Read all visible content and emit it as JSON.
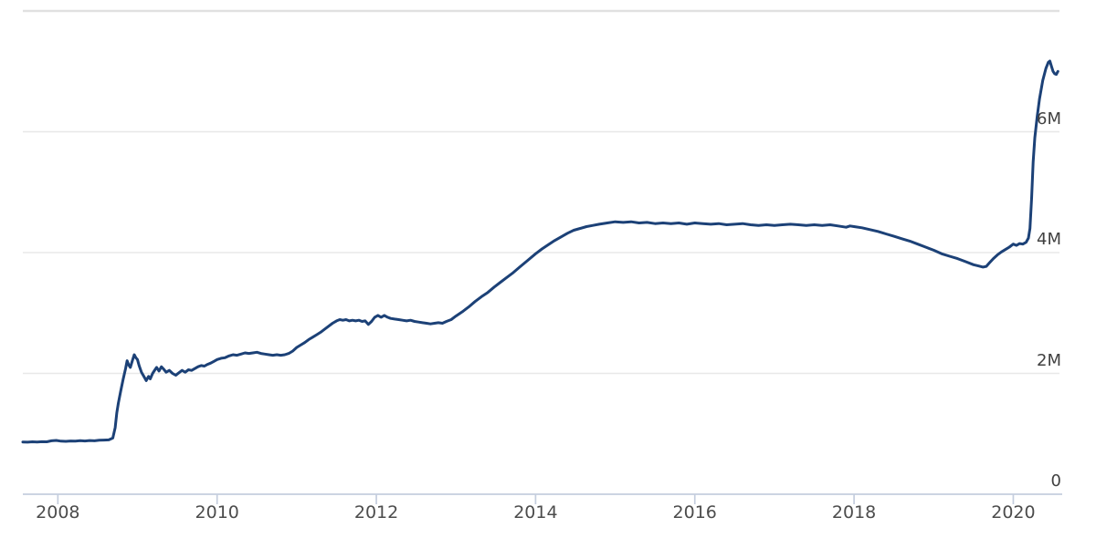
{
  "chart_data": {
    "type": "line",
    "title": "",
    "xlabel": "",
    "ylabel": "",
    "grid": true,
    "legend": false,
    "x_axis": {
      "range": [
        2007.56,
        2020.58
      ],
      "ticks": [
        "2008",
        "2010",
        "2012",
        "2014",
        "2016",
        "2018",
        "2020"
      ],
      "tick_values": [
        2008,
        2010,
        2012,
        2014,
        2016,
        2018,
        2020
      ]
    },
    "y_axis": {
      "range": [
        0,
        8
      ],
      "unit_suffix": "M",
      "ticks": [
        {
          "value": 0,
          "label": "0"
        },
        {
          "value": 2,
          "label": "2M"
        },
        {
          "value": 4,
          "label": "4M"
        },
        {
          "value": 6,
          "label": "6M"
        },
        {
          "value": 8,
          "label": ""
        }
      ]
    },
    "series": [
      {
        "name": "total-assets-line",
        "color": "#1c4177",
        "points": [
          [
            2007.56,
            0.865
          ],
          [
            2007.62,
            0.862
          ],
          [
            2007.68,
            0.868
          ],
          [
            2007.74,
            0.864
          ],
          [
            2007.8,
            0.87
          ],
          [
            2007.86,
            0.868
          ],
          [
            2007.92,
            0.885
          ],
          [
            2007.98,
            0.89
          ],
          [
            2008.04,
            0.878
          ],
          [
            2008.1,
            0.875
          ],
          [
            2008.16,
            0.882
          ],
          [
            2008.22,
            0.878
          ],
          [
            2008.28,
            0.886
          ],
          [
            2008.34,
            0.882
          ],
          [
            2008.4,
            0.889
          ],
          [
            2008.46,
            0.885
          ],
          [
            2008.52,
            0.893
          ],
          [
            2008.58,
            0.896
          ],
          [
            2008.64,
            0.9
          ],
          [
            2008.69,
            0.93
          ],
          [
            2008.72,
            1.1
          ],
          [
            2008.74,
            1.35
          ],
          [
            2008.76,
            1.51
          ],
          [
            2008.79,
            1.71
          ],
          [
            2008.82,
            1.9
          ],
          [
            2008.85,
            2.08
          ],
          [
            2008.87,
            2.21
          ],
          [
            2008.89,
            2.14
          ],
          [
            2008.91,
            2.1
          ],
          [
            2008.94,
            2.23
          ],
          [
            2008.96,
            2.31
          ],
          [
            2008.98,
            2.26
          ],
          [
            2009.0,
            2.23
          ],
          [
            2009.02,
            2.13
          ],
          [
            2009.05,
            2.02
          ],
          [
            2009.08,
            1.95
          ],
          [
            2009.11,
            1.88
          ],
          [
            2009.14,
            1.95
          ],
          [
            2009.16,
            1.91
          ],
          [
            2009.19,
            2.0
          ],
          [
            2009.22,
            2.06
          ],
          [
            2009.24,
            2.1
          ],
          [
            2009.27,
            2.04
          ],
          [
            2009.3,
            2.11
          ],
          [
            2009.33,
            2.07
          ],
          [
            2009.36,
            2.02
          ],
          [
            2009.4,
            2.05
          ],
          [
            2009.44,
            2.0
          ],
          [
            2009.48,
            1.97
          ],
          [
            2009.52,
            2.01
          ],
          [
            2009.56,
            2.05
          ],
          [
            2009.6,
            2.02
          ],
          [
            2009.64,
            2.06
          ],
          [
            2009.68,
            2.05
          ],
          [
            2009.72,
            2.08
          ],
          [
            2009.76,
            2.11
          ],
          [
            2009.8,
            2.13
          ],
          [
            2009.84,
            2.12
          ],
          [
            2009.88,
            2.15
          ],
          [
            2009.92,
            2.17
          ],
          [
            2009.96,
            2.2
          ],
          [
            2010.0,
            2.23
          ],
          [
            2010.05,
            2.25
          ],
          [
            2010.1,
            2.26
          ],
          [
            2010.15,
            2.29
          ],
          [
            2010.2,
            2.31
          ],
          [
            2010.25,
            2.3
          ],
          [
            2010.3,
            2.32
          ],
          [
            2010.35,
            2.34
          ],
          [
            2010.4,
            2.33
          ],
          [
            2010.45,
            2.34
          ],
          [
            2010.5,
            2.35
          ],
          [
            2010.55,
            2.33
          ],
          [
            2010.6,
            2.32
          ],
          [
            2010.65,
            2.31
          ],
          [
            2010.7,
            2.3
          ],
          [
            2010.75,
            2.31
          ],
          [
            2010.8,
            2.3
          ],
          [
            2010.85,
            2.31
          ],
          [
            2010.9,
            2.33
          ],
          [
            2010.95,
            2.37
          ],
          [
            2011.0,
            2.43
          ],
          [
            2011.05,
            2.47
          ],
          [
            2011.1,
            2.51
          ],
          [
            2011.15,
            2.56
          ],
          [
            2011.2,
            2.6
          ],
          [
            2011.25,
            2.64
          ],
          [
            2011.3,
            2.68
          ],
          [
            2011.35,
            2.73
          ],
          [
            2011.4,
            2.78
          ],
          [
            2011.45,
            2.83
          ],
          [
            2011.5,
            2.87
          ],
          [
            2011.54,
            2.89
          ],
          [
            2011.58,
            2.88
          ],
          [
            2011.62,
            2.89
          ],
          [
            2011.66,
            2.87
          ],
          [
            2011.7,
            2.88
          ],
          [
            2011.74,
            2.87
          ],
          [
            2011.78,
            2.88
          ],
          [
            2011.82,
            2.86
          ],
          [
            2011.86,
            2.87
          ],
          [
            2011.9,
            2.81
          ],
          [
            2011.94,
            2.86
          ],
          [
            2011.98,
            2.93
          ],
          [
            2012.02,
            2.96
          ],
          [
            2012.06,
            2.93
          ],
          [
            2012.1,
            2.96
          ],
          [
            2012.14,
            2.93
          ],
          [
            2012.18,
            2.91
          ],
          [
            2012.23,
            2.9
          ],
          [
            2012.28,
            2.89
          ],
          [
            2012.33,
            2.88
          ],
          [
            2012.38,
            2.87
          ],
          [
            2012.43,
            2.88
          ],
          [
            2012.48,
            2.86
          ],
          [
            2012.53,
            2.85
          ],
          [
            2012.58,
            2.84
          ],
          [
            2012.63,
            2.83
          ],
          [
            2012.68,
            2.82
          ],
          [
            2012.73,
            2.83
          ],
          [
            2012.78,
            2.84
          ],
          [
            2012.83,
            2.83
          ],
          [
            2012.88,
            2.86
          ],
          [
            2012.94,
            2.89
          ],
          [
            2013.0,
            2.95
          ],
          [
            2013.08,
            3.02
          ],
          [
            2013.16,
            3.1
          ],
          [
            2013.24,
            3.19
          ],
          [
            2013.32,
            3.27
          ],
          [
            2013.4,
            3.34
          ],
          [
            2013.48,
            3.43
          ],
          [
            2013.56,
            3.51
          ],
          [
            2013.64,
            3.59
          ],
          [
            2013.72,
            3.67
          ],
          [
            2013.8,
            3.76
          ],
          [
            2013.9,
            3.87
          ],
          [
            2014.0,
            3.98
          ],
          [
            2014.08,
            4.06
          ],
          [
            2014.16,
            4.13
          ],
          [
            2014.24,
            4.2
          ],
          [
            2014.32,
            4.26
          ],
          [
            2014.4,
            4.32
          ],
          [
            2014.48,
            4.37
          ],
          [
            2014.56,
            4.4
          ],
          [
            2014.64,
            4.43
          ],
          [
            2014.72,
            4.45
          ],
          [
            2014.8,
            4.47
          ],
          [
            2014.9,
            4.49
          ],
          [
            2015.0,
            4.51
          ],
          [
            2015.1,
            4.5
          ],
          [
            2015.2,
            4.51
          ],
          [
            2015.3,
            4.49
          ],
          [
            2015.4,
            4.5
          ],
          [
            2015.5,
            4.48
          ],
          [
            2015.6,
            4.49
          ],
          [
            2015.7,
            4.48
          ],
          [
            2015.8,
            4.49
          ],
          [
            2015.9,
            4.47
          ],
          [
            2016.0,
            4.49
          ],
          [
            2016.1,
            4.48
          ],
          [
            2016.2,
            4.47
          ],
          [
            2016.3,
            4.48
          ],
          [
            2016.4,
            4.46
          ],
          [
            2016.5,
            4.47
          ],
          [
            2016.6,
            4.48
          ],
          [
            2016.7,
            4.46
          ],
          [
            2016.8,
            4.45
          ],
          [
            2016.9,
            4.46
          ],
          [
            2017.0,
            4.45
          ],
          [
            2017.1,
            4.46
          ],
          [
            2017.2,
            4.47
          ],
          [
            2017.3,
            4.46
          ],
          [
            2017.4,
            4.45
          ],
          [
            2017.5,
            4.46
          ],
          [
            2017.6,
            4.45
          ],
          [
            2017.7,
            4.46
          ],
          [
            2017.8,
            4.44
          ],
          [
            2017.9,
            4.42
          ],
          [
            2017.95,
            4.44
          ],
          [
            2018.0,
            4.43
          ],
          [
            2018.1,
            4.41
          ],
          [
            2018.2,
            4.38
          ],
          [
            2018.3,
            4.35
          ],
          [
            2018.4,
            4.31
          ],
          [
            2018.5,
            4.27
          ],
          [
            2018.6,
            4.23
          ],
          [
            2018.7,
            4.19
          ],
          [
            2018.8,
            4.14
          ],
          [
            2018.9,
            4.09
          ],
          [
            2019.0,
            4.04
          ],
          [
            2019.1,
            3.98
          ],
          [
            2019.2,
            3.94
          ],
          [
            2019.3,
            3.9
          ],
          [
            2019.4,
            3.85
          ],
          [
            2019.5,
            3.8
          ],
          [
            2019.56,
            3.78
          ],
          [
            2019.62,
            3.76
          ],
          [
            2019.66,
            3.77
          ],
          [
            2019.7,
            3.83
          ],
          [
            2019.75,
            3.9
          ],
          [
            2019.8,
            3.96
          ],
          [
            2019.85,
            4.01
          ],
          [
            2019.9,
            4.05
          ],
          [
            2019.95,
            4.09
          ],
          [
            2020.0,
            4.14
          ],
          [
            2020.04,
            4.12
          ],
          [
            2020.08,
            4.15
          ],
          [
            2020.12,
            4.14
          ],
          [
            2020.16,
            4.17
          ],
          [
            2020.19,
            4.24
          ],
          [
            2020.21,
            4.4
          ],
          [
            2020.23,
            4.9
          ],
          [
            2020.25,
            5.5
          ],
          [
            2020.27,
            5.9
          ],
          [
            2020.3,
            6.25
          ],
          [
            2020.33,
            6.55
          ],
          [
            2020.37,
            6.85
          ],
          [
            2020.41,
            7.05
          ],
          [
            2020.44,
            7.15
          ],
          [
            2020.46,
            7.17
          ],
          [
            2020.48,
            7.08
          ],
          [
            2020.5,
            7.0
          ],
          [
            2020.52,
            6.96
          ],
          [
            2020.54,
            6.95
          ],
          [
            2020.56,
            7.0
          ]
        ]
      }
    ]
  },
  "colors": {
    "line": "#1c4177",
    "axis": "#c5cede",
    "grid": "#e8e8e8",
    "grid_top": "#e1e1e1",
    "x_label_text": "#4c4c4c",
    "y_label_text": "#414141",
    "background": "#ffffff"
  }
}
